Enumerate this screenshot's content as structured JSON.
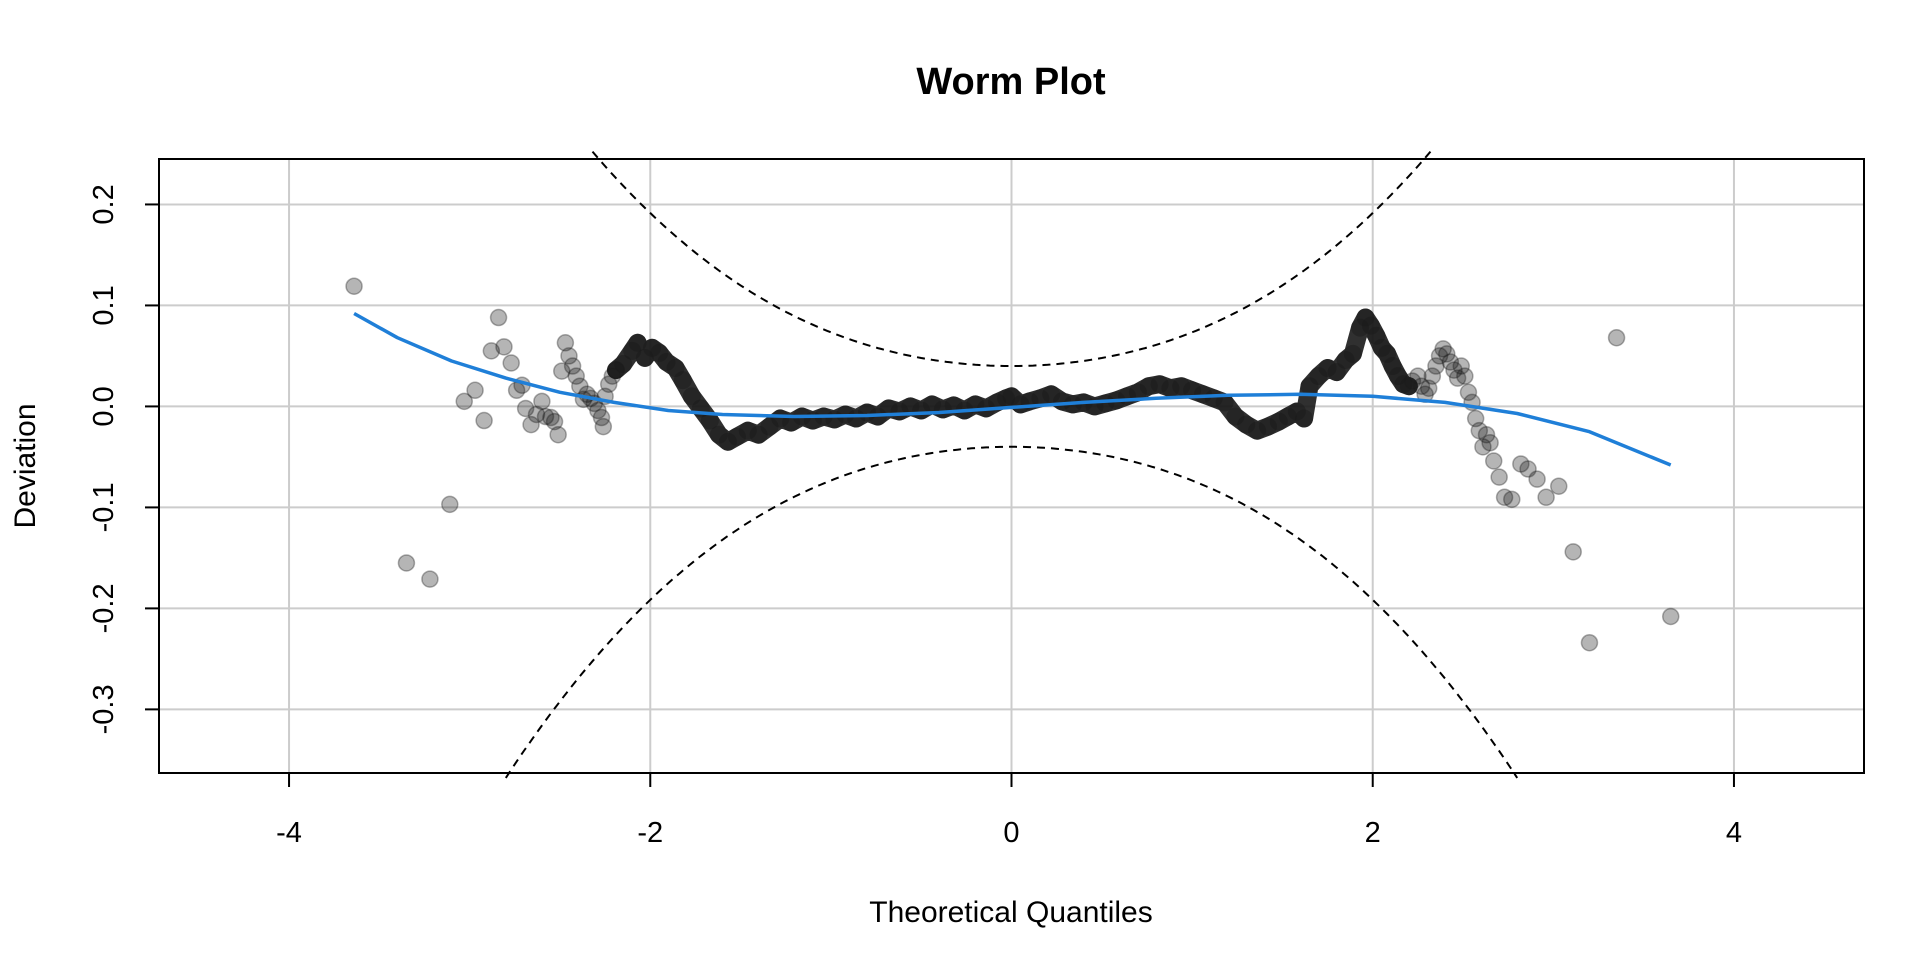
{
  "chart_data": {
    "type": "scatter",
    "title": "Worm Plot",
    "xlabel": "Theoretical Quantiles",
    "ylabel": "Deviation",
    "xlim": [
      -4.72,
      4.72
    ],
    "ylim": [
      -0.363,
      0.245
    ],
    "x_ticks": [
      -4,
      -2,
      0,
      2,
      4
    ],
    "y_ticks": [
      0.2,
      0.1,
      0.0,
      -0.1,
      -0.2,
      -0.3
    ],
    "x_tick_labels": [
      "-4",
      "-2",
      "0",
      "2",
      "4"
    ],
    "y_tick_labels": [
      "0.2",
      "0.1",
      "0.0",
      "-0.1",
      "-0.2",
      "-0.3"
    ],
    "grid": true,
    "colors": {
      "points": "#1a1a1a",
      "fit": "#1f7fd8",
      "bands": "#000000",
      "grid": "#cccccc"
    },
    "points": [
      [
        -3.64,
        0.119
      ],
      [
        -3.35,
        -0.155
      ],
      [
        -3.22,
        -0.171
      ],
      [
        -3.11,
        -0.097
      ],
      [
        -3.03,
        0.005
      ],
      [
        -2.97,
        0.016
      ],
      [
        -2.92,
        -0.014
      ],
      [
        -2.88,
        0.055
      ],
      [
        -2.84,
        0.088
      ],
      [
        -2.81,
        0.059
      ],
      [
        -2.77,
        0.043
      ],
      [
        -2.74,
        0.016
      ],
      [
        -2.71,
        0.021
      ],
      [
        -2.69,
        -0.002
      ],
      [
        -2.66,
        -0.018
      ],
      [
        -2.63,
        -0.008
      ],
      [
        -2.6,
        0.005
      ],
      [
        -2.58,
        -0.01
      ],
      [
        -2.55,
        -0.011
      ],
      [
        -2.53,
        -0.015
      ],
      [
        -2.51,
        -0.028
      ],
      [
        -2.49,
        0.035
      ],
      [
        -2.47,
        0.063
      ],
      [
        -2.45,
        0.05
      ],
      [
        -2.43,
        0.04
      ],
      [
        -2.41,
        0.03
      ],
      [
        -2.39,
        0.02
      ],
      [
        -2.37,
        0.007
      ],
      [
        -2.35,
        0.012
      ],
      [
        -2.33,
        0.008
      ],
      [
        -2.31,
        0.003
      ],
      [
        -2.29,
        -0.004
      ],
      [
        -2.27,
        -0.011
      ],
      [
        -2.26,
        -0.02
      ],
      [
        -2.25,
        0.01
      ],
      [
        -2.23,
        0.022
      ],
      [
        -2.21,
        0.03
      ],
      [
        -2.19,
        0.036
      ]
    ],
    "worm": [
      [
        -2.19,
        0.036
      ],
      [
        -2.15,
        0.042
      ],
      [
        -2.1,
        0.055
      ],
      [
        -2.07,
        0.063
      ],
      [
        -2.03,
        0.048
      ],
      [
        -1.99,
        0.058
      ],
      [
        -1.95,
        0.053
      ],
      [
        -1.91,
        0.044
      ],
      [
        -1.86,
        0.038
      ],
      [
        -1.82,
        0.026
      ],
      [
        -1.77,
        0.01
      ],
      [
        -1.72,
        -0.002
      ],
      [
        -1.67,
        -0.014
      ],
      [
        -1.62,
        -0.028
      ],
      [
        -1.57,
        -0.035
      ],
      [
        -1.52,
        -0.03
      ],
      [
        -1.46,
        -0.024
      ],
      [
        -1.4,
        -0.028
      ],
      [
        -1.34,
        -0.02
      ],
      [
        -1.28,
        -0.012
      ],
      [
        -1.22,
        -0.016
      ],
      [
        -1.16,
        -0.01
      ],
      [
        -1.1,
        -0.014
      ],
      [
        -1.04,
        -0.01
      ],
      [
        -0.98,
        -0.013
      ],
      [
        -0.92,
        -0.008
      ],
      [
        -0.86,
        -0.012
      ],
      [
        -0.8,
        -0.006
      ],
      [
        -0.74,
        -0.01
      ],
      [
        -0.68,
        -0.002
      ],
      [
        -0.62,
        -0.005
      ],
      [
        -0.56,
        0.0
      ],
      [
        -0.5,
        -0.004
      ],
      [
        -0.44,
        0.002
      ],
      [
        -0.38,
        -0.003
      ],
      [
        -0.32,
        0.001
      ],
      [
        -0.26,
        -0.004
      ],
      [
        -0.2,
        0.002
      ],
      [
        -0.14,
        -0.002
      ],
      [
        -0.08,
        0.004
      ],
      [
        -0.03,
        0.008
      ],
      [
        0.0,
        0.01
      ],
      [
        0.05,
        0.002
      ],
      [
        0.1,
        0.005
      ],
      [
        0.16,
        0.008
      ],
      [
        0.22,
        0.012
      ],
      [
        0.28,
        0.005
      ],
      [
        0.34,
        0.002
      ],
      [
        0.4,
        0.004
      ],
      [
        0.46,
        0.0
      ],
      [
        0.52,
        0.003
      ],
      [
        0.58,
        0.006
      ],
      [
        0.64,
        0.01
      ],
      [
        0.7,
        0.014
      ],
      [
        0.76,
        0.02
      ],
      [
        0.82,
        0.022
      ],
      [
        0.88,
        0.018
      ],
      [
        0.94,
        0.02
      ],
      [
        1.0,
        0.016
      ],
      [
        1.06,
        0.012
      ],
      [
        1.12,
        0.008
      ],
      [
        1.18,
        0.004
      ],
      [
        1.24,
        -0.01
      ],
      [
        1.3,
        -0.018
      ],
      [
        1.36,
        -0.024
      ],
      [
        1.42,
        -0.02
      ],
      [
        1.48,
        -0.015
      ],
      [
        1.53,
        -0.01
      ],
      [
        1.58,
        -0.005
      ],
      [
        1.62,
        -0.012
      ],
      [
        1.65,
        0.02
      ],
      [
        1.7,
        0.03
      ],
      [
        1.75,
        0.038
      ],
      [
        1.8,
        0.034
      ],
      [
        1.85,
        0.046
      ],
      [
        1.89,
        0.052
      ],
      [
        1.93,
        0.078
      ],
      [
        1.96,
        0.088
      ],
      [
        1.99,
        0.08
      ],
      [
        2.02,
        0.07
      ],
      [
        2.05,
        0.058
      ],
      [
        2.08,
        0.052
      ],
      [
        2.11,
        0.04
      ],
      [
        2.14,
        0.03
      ],
      [
        2.17,
        0.022
      ],
      [
        2.2,
        0.02
      ]
    ],
    "points_right": [
      [
        2.22,
        0.025
      ],
      [
        2.25,
        0.03
      ],
      [
        2.27,
        0.02
      ],
      [
        2.29,
        0.012
      ],
      [
        2.31,
        0.018
      ],
      [
        2.33,
        0.03
      ],
      [
        2.35,
        0.04
      ],
      [
        2.37,
        0.05
      ],
      [
        2.39,
        0.057
      ],
      [
        2.41,
        0.052
      ],
      [
        2.43,
        0.044
      ],
      [
        2.45,
        0.036
      ],
      [
        2.47,
        0.028
      ],
      [
        2.49,
        0.04
      ],
      [
        2.51,
        0.03
      ],
      [
        2.53,
        0.014
      ],
      [
        2.55,
        0.004
      ],
      [
        2.57,
        -0.012
      ],
      [
        2.59,
        -0.024
      ],
      [
        2.61,
        -0.04
      ],
      [
        2.63,
        -0.028
      ],
      [
        2.65,
        -0.036
      ],
      [
        2.67,
        -0.054
      ],
      [
        2.7,
        -0.07
      ],
      [
        2.73,
        -0.09
      ],
      [
        2.77,
        -0.092
      ],
      [
        2.82,
        -0.057
      ],
      [
        2.86,
        -0.062
      ],
      [
        2.91,
        -0.072
      ],
      [
        2.96,
        -0.09
      ],
      [
        3.03,
        -0.079
      ],
      [
        3.11,
        -0.144
      ],
      [
        3.2,
        -0.234
      ],
      [
        3.35,
        0.068
      ],
      [
        3.65,
        -0.208
      ]
    ],
    "fit_curve": [
      [
        -3.64,
        0.092
      ],
      [
        -3.4,
        0.068
      ],
      [
        -3.1,
        0.045
      ],
      [
        -2.8,
        0.028
      ],
      [
        -2.5,
        0.014
      ],
      [
        -2.2,
        0.004
      ],
      [
        -1.9,
        -0.004
      ],
      [
        -1.6,
        -0.008
      ],
      [
        -1.2,
        -0.01
      ],
      [
        -0.8,
        -0.009
      ],
      [
        -0.4,
        -0.006
      ],
      [
        0.0,
        -0.001
      ],
      [
        0.4,
        0.004
      ],
      [
        0.8,
        0.008
      ],
      [
        1.2,
        0.011
      ],
      [
        1.6,
        0.012
      ],
      [
        2.0,
        0.01
      ],
      [
        2.4,
        0.004
      ],
      [
        2.8,
        -0.007
      ],
      [
        3.2,
        -0.025
      ],
      [
        3.65,
        -0.058
      ]
    ],
    "band_scale": 0.04
  }
}
